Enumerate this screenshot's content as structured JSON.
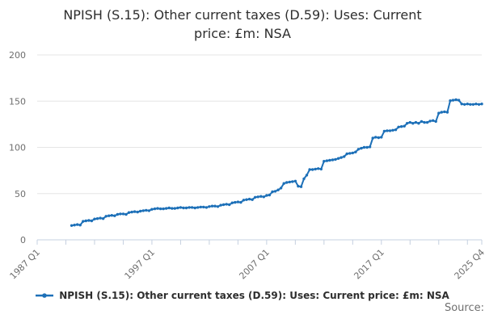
{
  "title_lines": [
    "NPISH (S.15): Other current taxes (D.59): Uses: Current",
    "price: £m: NSA"
  ],
  "legend": {
    "label": "NPISH (S.15): Other current taxes (D.59): Uses: Current price: £m: NSA"
  },
  "source": {
    "label": "Source:"
  },
  "colors": {
    "line": "#1d70b8",
    "grid": "#e6e6e6",
    "axis": "#c5d0e0",
    "axis_label": "#6e6e6e",
    "title_text": "#2e2e2e",
    "legend_text": "#2e2e2e",
    "source_text": "#6f6f6f",
    "background": "#ffffff"
  },
  "chart_data": {
    "type": "line",
    "title": "NPISH (S.15): Other current taxes (D.59): Uses: Current price: £m: NSA",
    "xlabel": "",
    "ylabel": "",
    "grid": true,
    "legend_position": "bottom",
    "marker": "dot",
    "y_axis": {
      "min": 0,
      "max": 200,
      "ticks": [
        0,
        50,
        100,
        150,
        200
      ]
    },
    "x_axis": {
      "min_t": 1987.0,
      "max_t": 2025.75,
      "minor_tick_years": 2.5,
      "labels": [
        {
          "t": 1987.0,
          "label": "1987 Q1"
        },
        {
          "t": 1997.0,
          "label": "1997 Q1"
        },
        {
          "t": 2007.0,
          "label": "2007 Q1"
        },
        {
          "t": 2017.0,
          "label": "2017 Q1"
        },
        {
          "t": 2025.75,
          "label": "2025 Q4"
        }
      ]
    },
    "series": [
      {
        "name": "NPISH (S.15): Other current taxes (D.59): Uses: Current price: £m: NSA",
        "frequency": "quarterly",
        "start_label": "1990 Q1",
        "end_label": "2025 Q4",
        "start_t": 1990.0,
        "step_t": 0.25,
        "values": [
          15.5,
          16,
          16.5,
          16,
          20,
          20.5,
          21,
          20.5,
          22.5,
          23,
          23.5,
          23,
          25.5,
          26,
          26.5,
          26,
          27.5,
          28,
          28,
          27.5,
          29.5,
          30,
          30.5,
          30,
          31,
          31.5,
          32,
          31.5,
          33,
          33.5,
          34,
          33.5,
          33.5,
          34,
          34.5,
          34,
          34,
          34.5,
          35,
          34.5,
          34.5,
          35,
          35,
          34.5,
          35,
          35.5,
          35.5,
          35,
          36,
          36.5,
          36.5,
          36,
          37.5,
          38,
          38.5,
          38,
          40,
          40.5,
          41,
          40.5,
          43,
          43.5,
          44,
          43.5,
          46,
          46.5,
          47,
          46.5,
          48,
          48.5,
          52,
          52.5,
          54,
          56,
          61,
          62,
          62.5,
          63,
          63.5,
          58,
          57.5,
          66,
          70,
          76,
          76,
          76.5,
          77,
          76.5,
          85,
          85.5,
          86,
          86.5,
          87,
          88,
          89,
          90,
          93,
          93.5,
          94,
          95,
          98,
          99,
          100,
          100,
          100.5,
          110,
          111,
          110.5,
          111,
          117.5,
          118,
          118,
          118.5,
          119,
          122,
          122.5,
          123,
          126,
          127,
          126,
          127,
          126,
          128,
          127,
          127,
          128.5,
          129,
          128,
          137,
          138,
          138.5,
          138,
          150.5,
          151,
          151.5,
          151,
          147,
          146.5,
          147,
          146.5,
          146.5,
          147,
          146.5,
          147
        ]
      }
    ]
  }
}
